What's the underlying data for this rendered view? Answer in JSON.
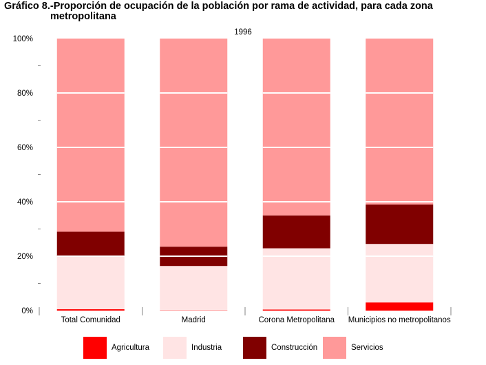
{
  "title": {
    "line1": "Gráfico 8.-Proporción de ocupación de la población por rama de actividad, para cada zona",
    "line2": "metropolitana"
  },
  "chart_data": {
    "type": "bar",
    "stacked": true,
    "subtitle": "1996",
    "categories": [
      "Total Comunidad",
      "Madrid",
      "Corona Metropolitana",
      "Municipios no metropolitanos"
    ],
    "series": [
      {
        "name": "Agricultura",
        "color": "#ff0000",
        "values": [
          0.5,
          0.1,
          0.4,
          3.0
        ]
      },
      {
        "name": "Industria",
        "color": "#ffe4e4",
        "values": [
          19.5,
          16.3,
          22.5,
          21.5
        ]
      },
      {
        "name": "Construcción",
        "color": "#800000",
        "values": [
          9.0,
          7.1,
          12.1,
          14.5
        ]
      },
      {
        "name": "Servicios",
        "color": "#ff9999",
        "values": [
          71.0,
          76.5,
          65.0,
          61.0
        ]
      }
    ],
    "yticks": [
      "0%",
      "20%",
      "40%",
      "60%",
      "80%",
      "100%"
    ],
    "ylim": [
      0,
      100
    ],
    "grid": "white lines across bars at 20% intervals",
    "legend": "bottom"
  }
}
